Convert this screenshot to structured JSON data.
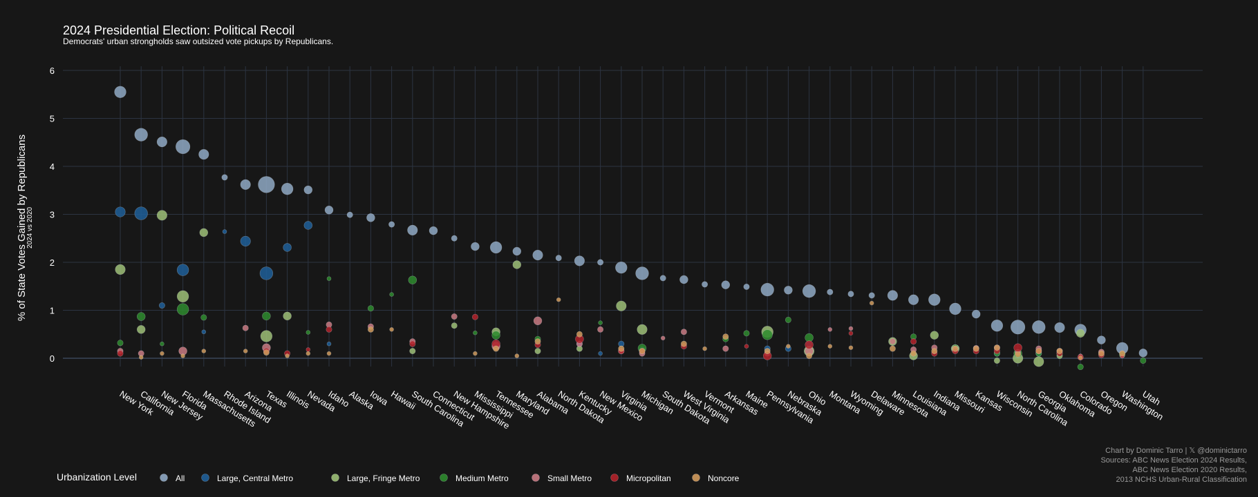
{
  "chart_data": {
    "type": "scatter",
    "title": "2024 Presidential Election: Political Recoil",
    "subtitle": "Democrats' urban strongholds saw outsized vote pickups by Republicans.",
    "ylabel": "% of State Votes Gained by Republicans",
    "ylabel_sub": "2024 vs 2020",
    "ylim": [
      -0.3,
      6.2
    ],
    "yticks": [
      0,
      1,
      2,
      3,
      4,
      5,
      6
    ],
    "grid": true,
    "legend": {
      "title": "Urbanization Level",
      "placement": "bottom-left",
      "items": [
        {
          "label": "All",
          "color": "#8fa9c4"
        },
        {
          "label": "Large, Central Metro",
          "color": "#1f5f99"
        },
        {
          "label": "Large, Fringe Metro",
          "color": "#9dc077"
        },
        {
          "label": "Medium Metro",
          "color": "#2e8b2e"
        },
        {
          "label": "Small Metro",
          "color": "#c97a83"
        },
        {
          "label": "Micropolitan",
          "color": "#b3222a"
        },
        {
          "label": "Noncore",
          "color": "#d09a5c"
        }
      ]
    },
    "categories": [
      "New York",
      "California",
      "New Jersey",
      "Florida",
      "Massachusetts",
      "Rhode Island",
      "Arizona",
      "Texas",
      "Illinois",
      "Nevada",
      "Idaho",
      "Alaska",
      "Iowa",
      "Hawaii",
      "South Carolina",
      "Connecticut",
      "New Hampshire",
      "Mississippi",
      "Tennessee",
      "Maryland",
      "Alabama",
      "North Dakota",
      "Kentucky",
      "New Mexico",
      "Virginia",
      "Michigan",
      "South Dakota",
      "West Virginia",
      "Vermont",
      "Arkansas",
      "Maine",
      "Pennsylvania",
      "Nebraska",
      "Ohio",
      "Montana",
      "Wyoming",
      "Delaware",
      "Minnesota",
      "Louisiana",
      "Indiana",
      "Missouri",
      "Kansas",
      "Wisconsin",
      "North Carolina",
      "Georgia",
      "Oklahoma",
      "Colorado",
      "Oregon",
      "Washington",
      "Utah"
    ],
    "series": [
      {
        "name": "All",
        "values": [
          5.55,
          4.66,
          4.51,
          4.41,
          4.25,
          3.77,
          3.62,
          3.62,
          3.53,
          3.51,
          3.09,
          2.99,
          2.93,
          2.79,
          2.67,
          2.66,
          2.5,
          2.33,
          2.31,
          2.23,
          2.15,
          2.09,
          2.03,
          2.0,
          1.89,
          1.77,
          1.67,
          1.64,
          1.54,
          1.53,
          1.49,
          1.43,
          1.42,
          1.4,
          1.38,
          1.34,
          1.31,
          1.31,
          1.22,
          1.22,
          1.03,
          0.92,
          0.68,
          0.65,
          0.65,
          0.64,
          0.59,
          0.38,
          0.21,
          0.11
        ],
        "weights": [
          4,
          5,
          3,
          6,
          3,
          1,
          3,
          8,
          4,
          2,
          2,
          1,
          2,
          1,
          3,
          2,
          1,
          2,
          4,
          2,
          3,
          1,
          3,
          1,
          4,
          5,
          1,
          2,
          1,
          2,
          1,
          5,
          2,
          5,
          1,
          1,
          1,
          3,
          3,
          4,
          4,
          2,
          4,
          6,
          5,
          3,
          4,
          2,
          4,
          2
        ]
      },
      {
        "name": "Large, Central Metro",
        "values": [
          3.05,
          3.02,
          1.1,
          1.84,
          0.55,
          2.64,
          2.44,
          1.77,
          2.31,
          2.77,
          0.3,
          null,
          null,
          null,
          null,
          null,
          null,
          null,
          0.3,
          null,
          null,
          null,
          0.3,
          0.1,
          0.3,
          0.18,
          null,
          null,
          null,
          null,
          null,
          0.2,
          0.2,
          0.3,
          null,
          null,
          null,
          null,
          null,
          null,
          null,
          null,
          0.1,
          0.1,
          0.1,
          null,
          null,
          null,
          0.05,
          null
        ],
        "weights": [
          3,
          5,
          1,
          4,
          0.5,
          0.5,
          3,
          5,
          2,
          2,
          0.5,
          null,
          null,
          null,
          null,
          null,
          null,
          null,
          1,
          null,
          null,
          null,
          1,
          0.5,
          1,
          1,
          null,
          null,
          null,
          null,
          null,
          1,
          1,
          1,
          null,
          null,
          null,
          null,
          null,
          null,
          null,
          null,
          1,
          1,
          1,
          null,
          null,
          null,
          0.5,
          null
        ]
      },
      {
        "name": "Large, Fringe Metro",
        "values": [
          1.85,
          0.6,
          2.98,
          1.29,
          2.62,
          null,
          null,
          0.46,
          0.88,
          null,
          null,
          null,
          null,
          null,
          0.15,
          null,
          0.68,
          null,
          0.55,
          1.95,
          0.15,
          null,
          0.2,
          null,
          1.09,
          0.6,
          null,
          null,
          null,
          null,
          null,
          0.55,
          null,
          0.15,
          null,
          null,
          null,
          0.35,
          0.05,
          0.48,
          0.2,
          null,
          -0.05,
          0.0,
          -0.07,
          0.05,
          0.52,
          null,
          null,
          null
        ],
        "weights": [
          3,
          2,
          3,
          4,
          2,
          null,
          null,
          4,
          2,
          null,
          null,
          null,
          null,
          null,
          1,
          null,
          1,
          null,
          2,
          2,
          1,
          null,
          1,
          null,
          3,
          3,
          null,
          null,
          null,
          null,
          null,
          4,
          null,
          3,
          null,
          null,
          null,
          2,
          2,
          2,
          2,
          null,
          1,
          3,
          3,
          1,
          2,
          null,
          null,
          null
        ]
      },
      {
        "name": "Medium Metro",
        "values": [
          0.32,
          0.87,
          0.3,
          1.02,
          0.85,
          null,
          null,
          0.88,
          null,
          0.54,
          1.66,
          null,
          1.04,
          1.33,
          1.63,
          null,
          null,
          0.53,
          0.48,
          null,
          0.4,
          null,
          null,
          0.74,
          null,
          0.21,
          null,
          null,
          null,
          0.4,
          0.52,
          0.49,
          0.8,
          0.43,
          null,
          null,
          null,
          null,
          0.45,
          null,
          0.22,
          null,
          0.1,
          0.1,
          0.1,
          0.1,
          -0.18,
          null,
          0.07,
          -0.05
        ],
        "weights": [
          1,
          2,
          0.5,
          4,
          1,
          null,
          null,
          2,
          null,
          0.5,
          0.5,
          null,
          1,
          0.5,
          2,
          null,
          null,
          0.5,
          2,
          null,
          1,
          null,
          null,
          0.5,
          null,
          2,
          null,
          null,
          null,
          1,
          1,
          3,
          1,
          2,
          null,
          null,
          null,
          null,
          1,
          null,
          1,
          null,
          1,
          2,
          1,
          1,
          1,
          null,
          1,
          1
        ]
      },
      {
        "name": "Small Metro",
        "values": [
          0.15,
          0.1,
          null,
          0.15,
          null,
          null,
          0.63,
          0.22,
          null,
          null,
          0.7,
          null,
          0.66,
          null,
          0.35,
          null,
          0.87,
          null,
          0.25,
          null,
          0.78,
          null,
          0.3,
          0.6,
          0.15,
          0.1,
          0.42,
          0.55,
          null,
          0.2,
          null,
          0.1,
          null,
          0.15,
          0.6,
          0.62,
          null,
          0.35,
          0.18,
          0.22,
          0.2,
          0.21,
          0.22,
          0.12,
          0.2,
          0.15,
          0.05,
          0.13,
          0.05,
          null
        ],
        "weights": [
          1,
          1,
          null,
          2,
          null,
          null,
          1,
          2,
          null,
          null,
          1,
          null,
          1,
          null,
          1,
          null,
          1,
          null,
          2,
          null,
          2,
          null,
          1,
          1,
          1,
          1,
          0.5,
          1,
          null,
          1,
          null,
          1,
          null,
          2,
          0.5,
          0.5,
          null,
          1,
          1,
          1,
          1,
          1,
          1,
          1,
          1,
          1,
          0.5,
          1,
          0.5,
          null
        ]
      },
      {
        "name": "Micropolitan",
        "values": [
          0.1,
          null,
          null,
          null,
          null,
          null,
          null,
          0.15,
          0.1,
          0.18,
          0.6,
          null,
          null,
          null,
          0.3,
          null,
          null,
          0.86,
          0.3,
          null,
          0.28,
          null,
          0.4,
          null,
          0.15,
          0.15,
          null,
          0.25,
          null,
          null,
          0.25,
          0.05,
          null,
          0.28,
          null,
          0.52,
          null,
          null,
          0.35,
          0.1,
          0.15,
          0.15,
          0.15,
          0.22,
          0.15,
          0.1,
          0.02,
          0.07,
          0.05,
          null
        ],
        "weights": [
          1,
          null,
          null,
          null,
          null,
          null,
          null,
          1,
          1,
          0.5,
          1,
          null,
          null,
          null,
          1,
          null,
          null,
          1,
          2,
          null,
          1,
          null,
          2,
          null,
          1,
          1,
          null,
          1,
          null,
          null,
          0.5,
          2,
          null,
          2,
          null,
          0.5,
          null,
          null,
          1,
          1,
          1,
          1,
          1,
          2,
          1,
          1,
          1,
          1,
          0.5,
          null
        ]
      },
      {
        "name": "Noncore",
        "values": [
          null,
          0.02,
          0.1,
          0.05,
          0.15,
          null,
          0.15,
          0.12,
          0.05,
          0.1,
          0.1,
          null,
          0.6,
          0.6,
          null,
          null,
          null,
          0.1,
          0.2,
          0.05,
          0.35,
          1.22,
          0.5,
          null,
          0.2,
          0.15,
          null,
          0.3,
          0.2,
          0.45,
          null,
          0.15,
          0.25,
          0.05,
          0.25,
          0.22,
          1.15,
          0.2,
          0.1,
          0.15,
          0.2,
          0.2,
          0.22,
          0.08,
          0.15,
          0.15,
          0.01,
          0.1,
          0.1,
          null
        ],
        "weights": [
          null,
          0.5,
          0.5,
          0.5,
          0.5,
          null,
          0.5,
          1,
          0.5,
          0.5,
          0.5,
          null,
          1,
          0.5,
          null,
          null,
          null,
          0.5,
          1,
          0.5,
          1,
          0.5,
          1,
          null,
          1,
          1,
          null,
          1,
          0.5,
          1,
          null,
          1,
          0.5,
          1,
          0.5,
          0.5,
          0.5,
          1,
          1,
          1,
          1,
          1,
          1,
          1,
          1,
          1,
          0.5,
          1,
          1,
          null
        ]
      }
    ],
    "credit_lines": [
      "Chart by Dominic Tarro | 𝕏 @dominictarro",
      "Sources: ABC News Election 2024 Results,",
      "ABC News Election 2020 Results,",
      "2013 NCHS Urban-Rural Classification"
    ]
  }
}
